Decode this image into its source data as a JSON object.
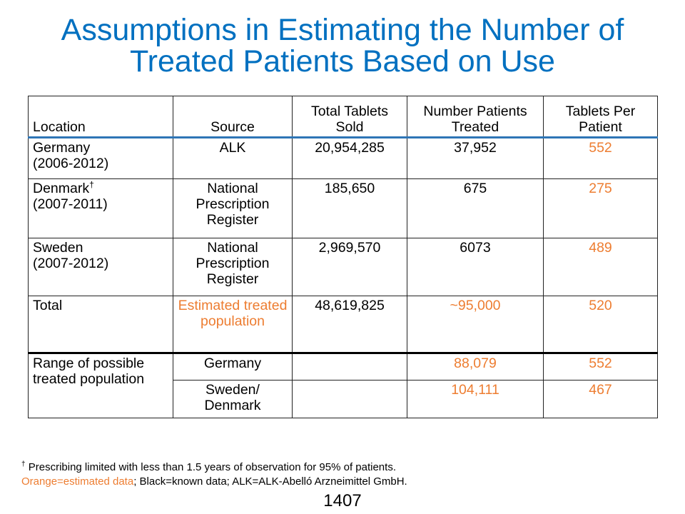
{
  "title": {
    "line1": "Assumptions in Estimating the Number of",
    "line2": "Treated Patients Based on Use"
  },
  "table": {
    "headers": {
      "location": "Location",
      "source": "Source",
      "tablets_sold": "Total Tablets Sold",
      "patients_treated": "Number Patients Treated",
      "tablets_per_patient": "Tablets Per Patient"
    },
    "rows": [
      {
        "location": "Germany",
        "period": "(2006-2012)",
        "dagger": "",
        "source": "ALK",
        "tablets_sold": "20,954,285",
        "patients_treated": "37,952",
        "tablets_per_patient": "552"
      },
      {
        "location": "Denmark",
        "period": "(2007-2011)",
        "dagger": "†",
        "source": "National Prescription Register",
        "tablets_sold": "185,650",
        "patients_treated": "675",
        "tablets_per_patient": "275"
      },
      {
        "location": "Sweden",
        "period": "(2007-2012)",
        "dagger": "",
        "source": "National Prescription Register",
        "tablets_sold": "2,969,570",
        "patients_treated": "6073",
        "tablets_per_patient": "489"
      },
      {
        "location": "Total",
        "source": "Estimated treated population",
        "tablets_sold": "48,619,825",
        "patients_treated": "~95,000",
        "tablets_per_patient": "520"
      }
    ],
    "range": {
      "label": "Range of possible treated population",
      "rows": [
        {
          "source": "Germany",
          "patients_treated": "88,079",
          "tablets_per_patient": "552"
        },
        {
          "source": "Sweden/ Denmark",
          "patients_treated": "104,111",
          "tablets_per_patient": "467"
        }
      ]
    }
  },
  "footnote": {
    "dagger": "†",
    "line1": " Prescribing limited with less than 1.5 years of observation for 95% of patients.",
    "orange_text": "Orange=estimated data",
    "line2_rest": "; Black=known data; ALK=ALK-Abelló Arzneimittel GmbH."
  },
  "page_number": "1407",
  "colors": {
    "title": "#0070c0",
    "estimated": "#ed7d31",
    "header_rule": "#2e75b6"
  }
}
